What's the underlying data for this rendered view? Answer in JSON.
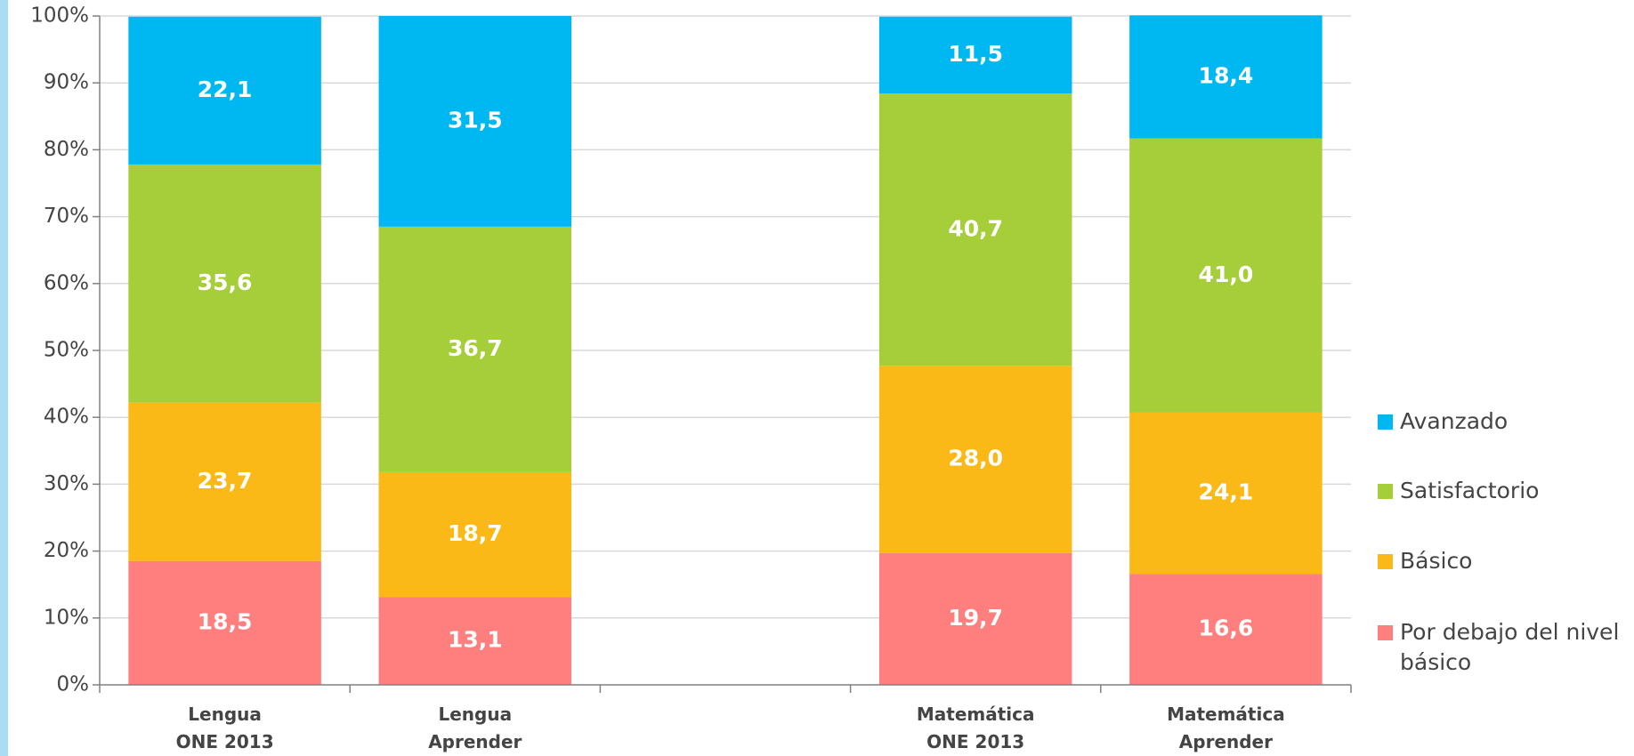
{
  "chart_data": {
    "type": "stacked_bar",
    "categories": [
      "Lengua\nONE 2013",
      "Lengua\nAprender",
      null,
      "Matemática\nONE 2013",
      "Matemática\nAprender"
    ],
    "series": [
      {
        "name": "Por debajo del nivel básico",
        "color": "#ff7f7f",
        "values": [
          18.5,
          13.1,
          null,
          19.7,
          16.6
        ],
        "value_labels": [
          "18,5",
          "13,1",
          null,
          "19,7",
          "16,6"
        ]
      },
      {
        "name": "Básico",
        "color": "#fbb917",
        "values": [
          23.7,
          18.7,
          null,
          28.0,
          24.1
        ],
        "value_labels": [
          "23,7",
          "18,7",
          null,
          "28,0",
          "24,1"
        ]
      },
      {
        "name": "Satisfactorio",
        "color": "#a6ce39",
        "values": [
          35.6,
          36.7,
          null,
          40.7,
          41.0
        ],
        "value_labels": [
          "35,6",
          "36,7",
          null,
          "40,7",
          "41,0"
        ]
      },
      {
        "name": "Avanzado",
        "color": "#00b8f1",
        "values": [
          22.1,
          31.5,
          null,
          11.5,
          18.4
        ],
        "value_labels": [
          "22,1",
          "31,5",
          null,
          "11,5",
          "18,4"
        ]
      }
    ],
    "ylim": [
      0,
      100
    ],
    "yticks": [
      {
        "value": 0,
        "label": "0%"
      },
      {
        "value": 10,
        "label": "10%"
      },
      {
        "value": 20,
        "label": "20%"
      },
      {
        "value": 30,
        "label": "30%"
      },
      {
        "value": 40,
        "label": "40%"
      },
      {
        "value": 50,
        "label": "50%"
      },
      {
        "value": 60,
        "label": "60%"
      },
      {
        "value": 70,
        "label": "70%"
      },
      {
        "value": 80,
        "label": "80%"
      },
      {
        "value": 90,
        "label": "90%"
      },
      {
        "value": 100,
        "label": "100%"
      }
    ],
    "grid": true,
    "legend": "right"
  }
}
